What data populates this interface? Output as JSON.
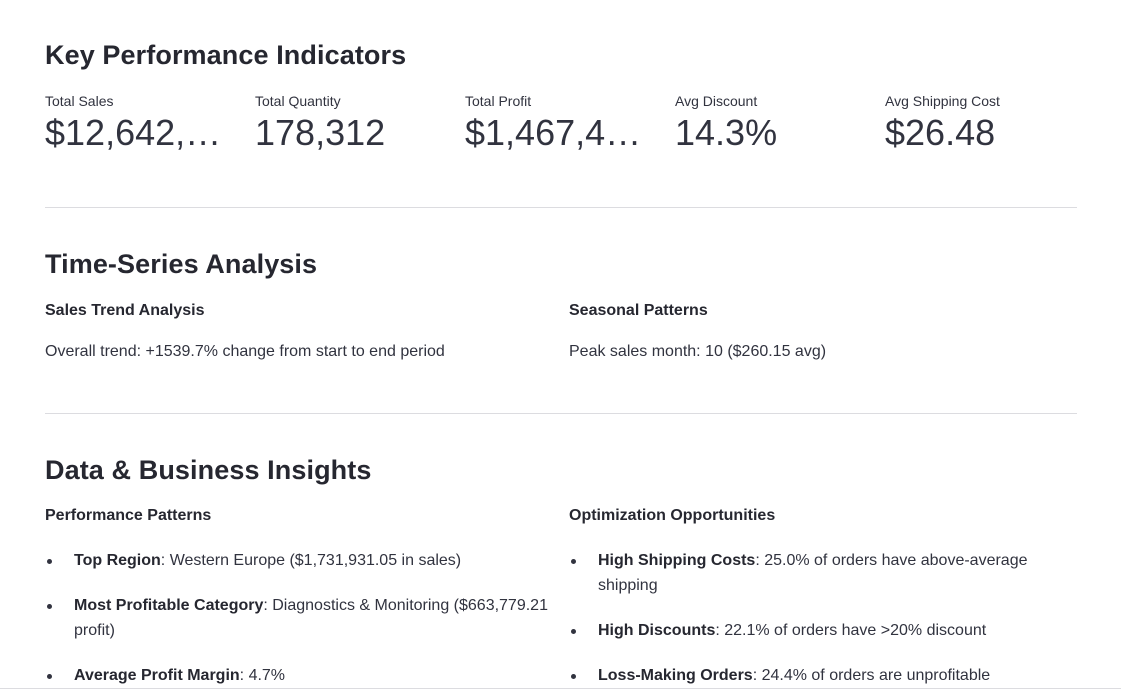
{
  "kpi_section": {
    "title": "Key Performance Indicators",
    "metrics": [
      {
        "label": "Total Sales",
        "value": "$12,642,…"
      },
      {
        "label": "Total Quantity",
        "value": "178,312"
      },
      {
        "label": "Total Profit",
        "value": "$1,467,4…"
      },
      {
        "label": "Avg Discount",
        "value": "14.3%"
      },
      {
        "label": "Avg Shipping Cost",
        "value": "$26.48"
      }
    ]
  },
  "timeseries_section": {
    "title": "Time-Series Analysis",
    "left": {
      "header": "Sales Trend Analysis",
      "text": "Overall trend: +1539.7% change from start to end period"
    },
    "right": {
      "header": "Seasonal Patterns",
      "text": "Peak sales month: 10 ($260.15 avg)"
    }
  },
  "insights_section": {
    "title": "Data & Business Insights",
    "left": {
      "header": "Performance Patterns",
      "items": [
        {
          "label": "Top Region",
          "text": ": Western Europe ($1,731,931.05 in sales)"
        },
        {
          "label": "Most Profitable Category",
          "text": ": Diagnostics & Monitoring ($663,779.21 profit)"
        },
        {
          "label": "Average Profit Margin",
          "text": ": 4.7%"
        }
      ]
    },
    "right": {
      "header": "Optimization Opportunities",
      "items": [
        {
          "label": "High Shipping Costs",
          "text": ": 25.0% of orders have above-average shipping"
        },
        {
          "label": "High Discounts",
          "text": ": 22.1% of orders have >20% discount"
        },
        {
          "label": "Loss-Making Orders",
          "text": ": 24.4% of orders are unprofitable"
        }
      ]
    }
  }
}
